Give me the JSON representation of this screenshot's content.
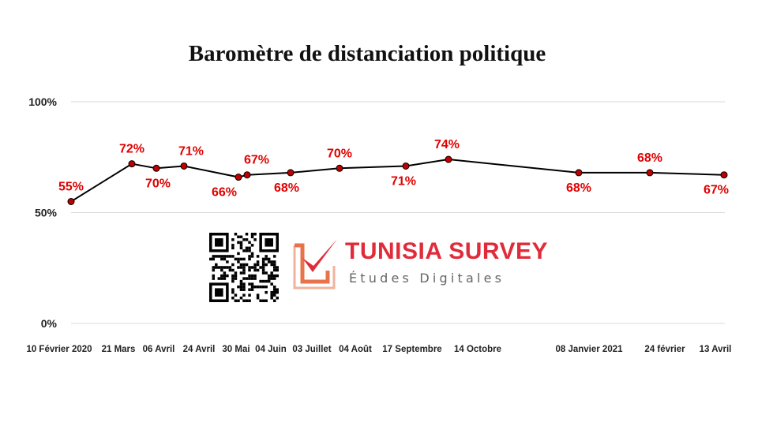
{
  "chart_data": {
    "type": "line",
    "title": "Baromètre de distanciation politique",
    "xlabel": "",
    "ylabel": "",
    "ylim": [
      0,
      100
    ],
    "yticks": [
      0,
      50,
      100
    ],
    "ytick_labels": [
      "0%",
      "50%",
      "100%"
    ],
    "grid": true,
    "x": [
      "10 Février 2020",
      "21 Mars",
      "06 Avril",
      "24 Avril",
      "30 Mai",
      "04 Juin",
      "03 Juillet",
      "04 Août",
      "17 Septembre",
      "14 Octobre",
      "08 Janvier 2021",
      "24 février",
      "13 Avril"
    ],
    "series": [
      {
        "values": [
          55,
          72,
          70,
          71,
          66,
          67,
          68,
          70,
          71,
          74,
          68,
          68,
          67
        ],
        "labels": [
          "55%",
          "72%",
          "70%",
          "71%",
          "66%",
          "67%",
          "68%",
          "70%",
          "71%",
          "74%",
          "68%",
          "68%",
          "67%"
        ],
        "line_color": "#000000",
        "marker_color": "#c00000",
        "label_color": "#e00000"
      }
    ]
  },
  "logo": {
    "name": "TUNISIA SURVEY",
    "subtitle": "Études Digitales",
    "brand_color": "#e02b3a",
    "mark_color": "#e8734a",
    "qr_icon": "qr-code-icon",
    "check_icon": "checkmark-logo-icon"
  }
}
